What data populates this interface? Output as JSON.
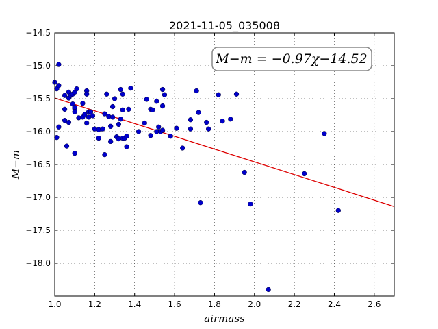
{
  "chart_data": {
    "type": "scatter",
    "title": "2021-11-05_035008",
    "xlabel": "airmass",
    "ylabel": "M−m",
    "xlim": [
      1.0,
      2.7
    ],
    "ylim": [
      -18.5,
      -14.5
    ],
    "y_inverted": true,
    "grid": true,
    "x_ticks": [
      1.0,
      1.2,
      1.4,
      1.6,
      1.8,
      2.0,
      2.2,
      2.4,
      2.6
    ],
    "x_tick_labels": [
      "1.0",
      "1.2",
      "1.4",
      "1.6",
      "1.8",
      "2.0",
      "2.2",
      "2.4",
      "2.6"
    ],
    "y_ticks": [
      -14.5,
      -15.0,
      -15.5,
      -16.0,
      -16.5,
      -17.0,
      -17.5,
      -18.0
    ],
    "y_tick_labels": [
      "−14.5",
      "−15.0",
      "−15.5",
      "−16.0",
      "−16.5",
      "−17.0",
      "−17.5",
      "−18.0"
    ],
    "annotation": "M−m = −0.97χ−14.52",
    "point_color": "#0000cc",
    "fit_color": "#dd0000",
    "fit": {
      "slope": -0.97,
      "intercept": -14.52
    },
    "points": [
      [
        1.0,
        -15.25
      ],
      [
        1.01,
        -15.35
      ],
      [
        1.02,
        -15.3
      ],
      [
        1.02,
        -14.98
      ],
      [
        1.01,
        -16.09
      ],
      [
        1.02,
        -15.93
      ],
      [
        1.05,
        -15.66
      ],
      [
        1.05,
        -15.45
      ],
      [
        1.05,
        -15.83
      ],
      [
        1.06,
        -16.22
      ],
      [
        1.07,
        -15.4
      ],
      [
        1.07,
        -15.49
      ],
      [
        1.08,
        -15.45
      ],
      [
        1.07,
        -15.86
      ],
      [
        1.09,
        -15.43
      ],
      [
        1.09,
        -15.58
      ],
      [
        1.1,
        -15.4
      ],
      [
        1.1,
        -15.65
      ],
      [
        1.1,
        -15.7
      ],
      [
        1.1,
        -15.63
      ],
      [
        1.1,
        -16.33
      ],
      [
        1.11,
        -15.35
      ],
      [
        1.12,
        -15.79
      ],
      [
        1.14,
        -15.78
      ],
      [
        1.14,
        -15.57
      ],
      [
        1.15,
        -15.74
      ],
      [
        1.16,
        -15.38
      ],
      [
        1.16,
        -15.43
      ],
      [
        1.16,
        -15.87
      ],
      [
        1.17,
        -15.7
      ],
      [
        1.17,
        -15.78
      ],
      [
        1.18,
        -15.7
      ],
      [
        1.19,
        -15.76
      ],
      [
        1.2,
        -15.96
      ],
      [
        1.22,
        -16.1
      ],
      [
        1.22,
        -15.97
      ],
      [
        1.24,
        -15.96
      ],
      [
        1.25,
        -16.35
      ],
      [
        1.25,
        -15.73
      ],
      [
        1.26,
        -15.43
      ],
      [
        1.27,
        -15.77
      ],
      [
        1.28,
        -16.15
      ],
      [
        1.28,
        -15.92
      ],
      [
        1.29,
        -15.62
      ],
      [
        1.29,
        -15.78
      ],
      [
        1.3,
        -15.5
      ],
      [
        1.31,
        -16.08
      ],
      [
        1.32,
        -15.89
      ],
      [
        1.32,
        -16.11
      ],
      [
        1.33,
        -15.81
      ],
      [
        1.33,
        -15.36
      ],
      [
        1.34,
        -15.43
      ],
      [
        1.34,
        -15.67
      ],
      [
        1.34,
        -16.1
      ],
      [
        1.35,
        -16.1
      ],
      [
        1.36,
        -16.07
      ],
      [
        1.36,
        -16.23
      ],
      [
        1.37,
        -15.66
      ],
      [
        1.38,
        -15.34
      ],
      [
        1.42,
        -16.0
      ],
      [
        1.45,
        -15.87
      ],
      [
        1.46,
        -15.51
      ],
      [
        1.48,
        -15.66
      ],
      [
        1.48,
        -16.06
      ],
      [
        1.49,
        -15.67
      ],
      [
        1.51,
        -15.54
      ],
      [
        1.51,
        -16.0
      ],
      [
        1.52,
        -15.93
      ],
      [
        1.53,
        -16.0
      ],
      [
        1.54,
        -15.61
      ],
      [
        1.54,
        -15.98
      ],
      [
        1.54,
        -15.36
      ],
      [
        1.55,
        -15.44
      ],
      [
        1.58,
        -16.07
      ],
      [
        1.61,
        -15.95
      ],
      [
        1.64,
        -16.25
      ],
      [
        1.68,
        -15.82
      ],
      [
        1.68,
        -15.96
      ],
      [
        1.71,
        -15.38
      ],
      [
        1.72,
        -15.71
      ],
      [
        1.73,
        -17.08
      ],
      [
        1.76,
        -15.86
      ],
      [
        1.77,
        -15.96
      ],
      [
        1.82,
        -15.44
      ],
      [
        1.84,
        -15.84
      ],
      [
        1.88,
        -15.81
      ],
      [
        1.91,
        -15.43
      ],
      [
        1.95,
        -16.62
      ],
      [
        1.98,
        -17.1
      ],
      [
        2.07,
        -18.4
      ],
      [
        2.25,
        -16.64
      ],
      [
        2.35,
        -16.03
      ],
      [
        2.42,
        -17.2
      ]
    ]
  }
}
